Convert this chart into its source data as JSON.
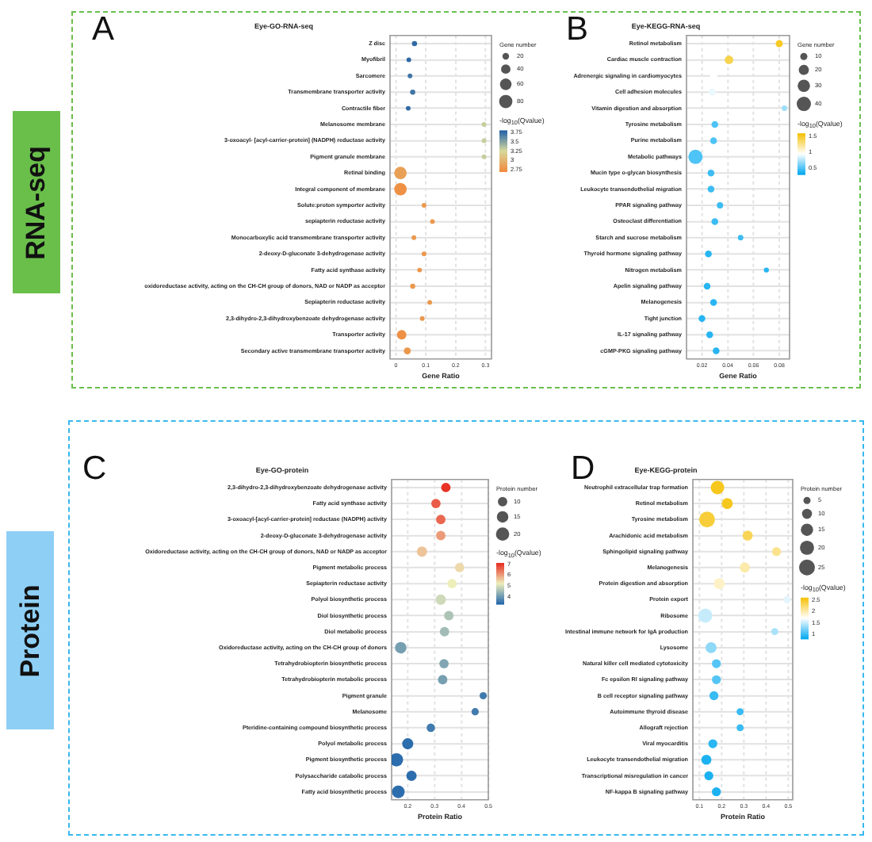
{
  "chart_data": [
    {
      "type": "bubble",
      "orientation": "horizontal",
      "title": "Eye-GO-RNA-seq",
      "xlabel": "Gene Ratio",
      "legend_title": "Gene number",
      "clabel": "-log$_{10}$(Qvalue)",
      "annotations": [
        "A",
        "RNA-seq"
      ],
      "grid": true,
      "categories": [
        "Z disc",
        "Myofibril",
        "Sarcomere",
        "Transmembrane transporter activity",
        "Contractile fiber",
        "Melanosome membrane",
        "3-oxoacyl- [acyl-carrier-protein] (NADPH) reductase activity",
        "Pigment granule membrane",
        "Retinal binding",
        "Integral component of membrane",
        "Solute:proton symporter activity",
        "sepiapterin reductase activity",
        "Monocarboxylic acid transmembrane transporter activity",
        "2-deoxy-D-gluconate 3-dehydrogenase activity",
        "Fatty acid synthase activity",
        "oxidoreductase activity, acting on the CH-CH group of donors, NAD or NADP as acceptor",
        "Sepiapterin reductase activity",
        "2,3-dihydro-2,3-dihydroxybenzoate dehydrogenase activity",
        "Transporter activity",
        "Secondary active transmembrane transporter activity"
      ],
      "values": [
        0.062,
        0.043,
        0.047,
        0.056,
        0.041,
        0.295,
        0.295,
        0.295,
        0.015,
        0.015,
        0.094,
        0.122,
        0.06,
        0.094,
        0.079,
        0.056,
        0.113,
        0.088,
        0.019,
        0.038
      ],
      "sizes": [
        12,
        10,
        10,
        12,
        10,
        10,
        10,
        10,
        70,
        70,
        10,
        10,
        10,
        10,
        10,
        12,
        10,
        10,
        40,
        22
      ],
      "cvalues": [
        3.75,
        3.75,
        3.7,
        3.7,
        3.75,
        3.3,
        3.3,
        3.3,
        2.85,
        2.75,
        2.8,
        2.8,
        2.8,
        2.8,
        2.8,
        2.8,
        2.8,
        2.8,
        2.75,
        2.8
      ],
      "xlim": [
        -0.02,
        0.32
      ],
      "xticks": [
        0,
        0.1,
        0.2,
        0.3
      ],
      "size_legend": [
        20,
        40,
        60,
        80
      ],
      "clim": [
        2.7,
        3.8
      ],
      "cticks": [
        2.75,
        3,
        3.25,
        3.5,
        3.75
      ]
    },
    {
      "type": "bubble",
      "orientation": "horizontal",
      "title": "Eye-KEGG-RNA-seq",
      "xlabel": "Gene Ratio",
      "legend_title": "Gene number",
      "clabel": "-log$_{10}$(Qvalue)",
      "annotations": [
        "B"
      ],
      "grid": true,
      "categories": [
        "Retinol metabolism",
        "Cardiac muscle contraction",
        "Adrenergic signaling in cardiomyocytes",
        "Cell adhesion molecules",
        "Vitamin digestion and absorption",
        "Tyrosine metabolism",
        "Purine metabolism",
        "Metabolic pathways",
        "Mucin type o-glycan biosynthesis",
        "Leukocyte transendothelial migration",
        "PPAR signaling pathway",
        "Osteoclast differentiation",
        "Starch and sucrose metabolism",
        "Thyroid hormone signaling pathway",
        "Nitrogen metabolism",
        "Apelin signaling pathway",
        "Melanogenesis",
        "Tight junction",
        "IL-17 signaling pathway",
        "cGMP-PKG signaling pathway"
      ],
      "values": [
        0.08,
        0.041,
        0.029,
        0.028,
        0.084,
        0.03,
        0.029,
        0.015,
        0.027,
        0.027,
        0.034,
        0.03,
        0.05,
        0.025,
        0.07,
        0.024,
        0.029,
        0.02,
        0.026,
        0.031
      ],
      "sizes": [
        10,
        14,
        10,
        10,
        6,
        9,
        9,
        40,
        9,
        9,
        8,
        9,
        6,
        9,
        5,
        9,
        9,
        9,
        9,
        9
      ],
      "cvalues": [
        1.5,
        1.4,
        0.95,
        0.9,
        0.7,
        0.5,
        0.5,
        0.5,
        0.45,
        0.45,
        0.45,
        0.45,
        0.45,
        0.4,
        0.4,
        0.4,
        0.4,
        0.4,
        0.4,
        0.4
      ],
      "xlim": [
        0.008,
        0.088
      ],
      "xticks": [
        0.02,
        0.04,
        0.06,
        0.08
      ],
      "size_legend": [
        10,
        20,
        30,
        40
      ],
      "clim": [
        0.3,
        1.6
      ],
      "cticks": [
        0.5,
        1,
        1.5
      ]
    },
    {
      "type": "bubble",
      "orientation": "horizontal",
      "title": "Eye-GO-protein",
      "xlabel": "Protein Ratio",
      "legend_title": "Protein number",
      "clabel": "-log$_{10}$(Qvalue)",
      "annotations": [
        "C",
        "Protein"
      ],
      "grid": true,
      "categories": [
        "2,3-dihydro-2,3-dihydroxybenzoate dehydrogenase activity",
        "Fatty acid synthase activity",
        "3-oxoacyl-[acyl-carrier-protein] reductase (NADPH) activity",
        "2-deoxy-D-gluconate 3-dehydrogenase activity",
        "Oxidoreductase activity, acting on the CH-CH group of donors, NAD or NADP as acceptor",
        "Pigment metabolic process",
        "Sepiapterin reductase activity",
        "Polyol biosynthetic process",
        "Diol biosynthetic process",
        "Diol metabolic process",
        "Oxidoreductase activity, acting on the CH-CH group of donors",
        "Tetrahydrobiopterin biosynthetic process",
        "Tetrahydrobiopterin metabolic process",
        "Pigment granule",
        "Melanosome",
        "Pteridine-containing compound biosynthetic process",
        "Polyol metabolic process",
        "Pigment biosynthetic process",
        "Polysaccharide catabolic process",
        "Fatty acid biosynthetic process"
      ],
      "values": [
        0.342,
        0.305,
        0.323,
        0.323,
        0.253,
        0.393,
        0.365,
        0.323,
        0.353,
        0.337,
        0.174,
        0.335,
        0.33,
        0.481,
        0.451,
        0.286,
        0.2,
        0.158,
        0.214,
        0.165
      ],
      "sizes": [
        10,
        10,
        10,
        10,
        12,
        10,
        10,
        12,
        10,
        10,
        15,
        10,
        10,
        6,
        6,
        8,
        14,
        20,
        12,
        18
      ],
      "cvalues": [
        7,
        6.6,
        6.5,
        6,
        5.6,
        5.4,
        5.2,
        4.9,
        4.6,
        4.5,
        4.1,
        4.2,
        4.1,
        3.6,
        3.6,
        3.6,
        3.4,
        3.4,
        3.4,
        3.4
      ],
      "xlim": [
        0.14,
        0.5
      ],
      "xticks": [
        0.2,
        0.3,
        0.4,
        0.5
      ],
      "size_legend": [
        10,
        15,
        20
      ],
      "clim": [
        3.3,
        7.1
      ],
      "cticks": [
        4,
        5,
        6,
        7
      ]
    },
    {
      "type": "bubble",
      "orientation": "horizontal",
      "title": "Eye-KEGG-protein",
      "xlabel": "Protein Ratio",
      "legend_title": "Protein number",
      "clabel": "-log$_{10}$(Qvalue)",
      "annotations": [
        "D"
      ],
      "grid": true,
      "categories": [
        "Neutrophil extracellular trap formation",
        "Retinol metabolism",
        "Tyrosine metabolism",
        "Arachidonic acid metabolism",
        "Sphingolipid signaling pathway",
        "Melanogenesis",
        "Protein digestion and absorption",
        "Protein export",
        "Ribosome",
        "Intestinal immune network for IgA production",
        "Lysosome",
        "Natural killer cell mediated cytotoxicity",
        "Fc epsilon RI signaling pathway",
        "B cell receptor signaling pathway",
        "Autoimmune thyroid disease",
        "Allograft rejection",
        "Viral myocarditis",
        "Leukocyte transendothelial migration",
        "Transcriptional misregulation in cancer",
        "NF-kappa B signaling pathway"
      ],
      "values": [
        0.181,
        0.225,
        0.134,
        0.317,
        0.447,
        0.304,
        0.189,
        0.494,
        0.126,
        0.439,
        0.152,
        0.176,
        0.176,
        0.165,
        0.283,
        0.283,
        0.16,
        0.131,
        0.142,
        0.176
      ],
      "sizes": [
        18,
        12,
        25,
        10,
        8,
        10,
        12,
        5,
        20,
        5,
        12,
        8,
        8,
        8,
        5,
        5,
        8,
        10,
        8,
        8
      ],
      "cvalues": [
        2.5,
        2.5,
        2.4,
        2.3,
        2.1,
        2,
        1.9,
        1.6,
        1.5,
        1.4,
        1.3,
        1.1,
        1.1,
        1,
        1,
        1,
        0.95,
        0.9,
        0.9,
        0.9
      ],
      "xlim": [
        0.07,
        0.52
      ],
      "xticks": [
        0.1,
        0.2,
        0.3,
        0.4,
        0.5
      ],
      "size_legend": [
        5,
        10,
        15,
        20,
        25
      ],
      "clim": [
        0.8,
        2.6
      ],
      "cticks": [
        1,
        1.5,
        2,
        2.5
      ]
    }
  ]
}
